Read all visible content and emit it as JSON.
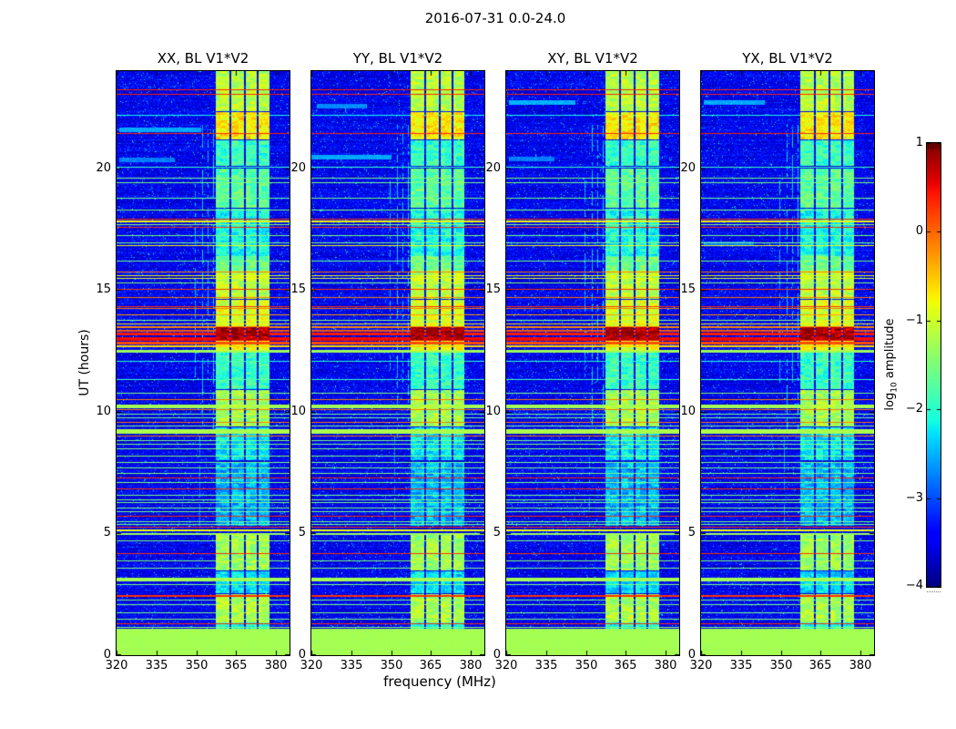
{
  "chart_data": {
    "type": "heatmap",
    "title": "2016-07-31 0.0-24.0",
    "xlabel": "frequency (MHz)",
    "ylabel": "UT (hours)",
    "x_range": [
      320,
      385.1
    ],
    "y_range": [
      0,
      24
    ],
    "x_tick_labels": [
      "320",
      "335",
      "350",
      "365",
      "380"
    ],
    "x_tick_values": [
      320,
      335,
      350,
      365,
      380
    ],
    "y_tick_labels": [
      "0",
      "5",
      "10",
      "15",
      "20"
    ],
    "y_tick_values": [
      0,
      5,
      10,
      15,
      20
    ],
    "panels": [
      {
        "label": "XX, BL V1*V2"
      },
      {
        "label": "YY, BL V1*V2"
      },
      {
        "label": "XY, BL V1*V2"
      },
      {
        "label": "YX, BL V1*V2"
      }
    ],
    "colorbar": {
      "label_log": "log",
      "label_sub": "10",
      "label_rest": " amplitude",
      "tick_labels": [
        "1",
        "0",
        "−1",
        "−2",
        "−3",
        "−4"
      ],
      "tick_values": [
        1,
        0,
        -1,
        -2,
        -3,
        -4
      ],
      "vmin": -4,
      "vmax": 1,
      "colormap": "jet"
    },
    "features": {
      "background": {
        "level": -3.85,
        "noise": 0.75,
        "speckle_level": -2.6,
        "speckle_prob": 0.02
      },
      "bottom_block": {
        "t": [
          0,
          1.08
        ],
        "level": -1.25
      },
      "band": {
        "f": [
          357.3,
          377.6
        ],
        "gap_freqs": [
          362.9,
          368.3,
          373.0
        ],
        "gap_halfwidth": 0.4,
        "intervals": [
          [
            22.35,
            24.0,
            -1.15
          ],
          [
            21.2,
            22.3,
            -0.7
          ],
          [
            20.1,
            21.15,
            -1.9
          ],
          [
            18.4,
            20.0,
            -1.7
          ],
          [
            16.4,
            18.35,
            -2.1
          ],
          [
            15.8,
            16.4,
            -1.6
          ],
          [
            14.65,
            15.8,
            -1.1
          ],
          [
            13.5,
            14.6,
            -0.95
          ],
          [
            12.95,
            13.48,
            0.85
          ],
          [
            12.5,
            12.95,
            -0.9
          ],
          [
            10.95,
            12.45,
            -1.9
          ],
          [
            9.4,
            10.9,
            -1.25
          ],
          [
            8.0,
            9.35,
            -2.25
          ],
          [
            5.3,
            7.95,
            -2.5
          ],
          [
            3.5,
            5.0,
            -1.3
          ],
          [
            2.55,
            3.45,
            -2.3
          ],
          [
            1.35,
            2.5,
            -1.2
          ],
          [
            1.08,
            1.35,
            -2.0
          ]
        ]
      },
      "horizontal_lines": [
        [
          23.25,
          0.35,
          1
        ],
        [
          23.05,
          0.35,
          1
        ],
        [
          22.2,
          -2.1,
          1
        ],
        [
          21.45,
          0.35,
          1
        ],
        [
          20.05,
          -1.9,
          1
        ],
        [
          19.62,
          -1.5,
          1
        ],
        [
          19.42,
          -1.5,
          1
        ],
        [
          18.78,
          -1.55,
          1
        ],
        [
          18.32,
          -1.5,
          1
        ],
        [
          17.95,
          0.3,
          1
        ],
        [
          17.85,
          -0.75,
          2
        ],
        [
          17.7,
          -1.3,
          1
        ],
        [
          17.6,
          0.3,
          1
        ],
        [
          17.25,
          -1.5,
          1
        ],
        [
          16.95,
          -1.5,
          1
        ],
        [
          16.85,
          -0.8,
          1
        ],
        [
          16.2,
          -1.6,
          1
        ],
        [
          15.78,
          -0.1,
          1
        ],
        [
          15.6,
          -0.8,
          1
        ],
        [
          15.5,
          -0.85,
          1
        ],
        [
          15.32,
          -1.5,
          1
        ],
        [
          15.05,
          0.3,
          1
        ],
        [
          14.7,
          -0.1,
          1
        ],
        [
          14.35,
          0.3,
          1
        ],
        [
          14.25,
          -0.1,
          1
        ],
        [
          14.0,
          -0.3,
          1
        ],
        [
          13.78,
          -1.4,
          1
        ],
        [
          13.62,
          -0.7,
          1
        ],
        [
          13.5,
          -0.15,
          2
        ],
        [
          13.38,
          0.1,
          2
        ],
        [
          13.27,
          0.4,
          3
        ],
        [
          13.08,
          0.5,
          4
        ],
        [
          12.88,
          0.15,
          3
        ],
        [
          12.72,
          -0.6,
          2
        ],
        [
          12.55,
          -1.3,
          3
        ],
        [
          12.1,
          -2.0,
          1
        ],
        [
          11.35,
          -1.9,
          1
        ],
        [
          10.78,
          -1.5,
          1
        ],
        [
          10.52,
          -0.1,
          1
        ],
        [
          10.3,
          -1.25,
          4
        ],
        [
          10.12,
          -0.1,
          1
        ],
        [
          9.92,
          -1.5,
          1
        ],
        [
          9.78,
          -1.5,
          1
        ],
        [
          9.58,
          -0.1,
          1
        ],
        [
          9.45,
          -1.45,
          1
        ],
        [
          9.3,
          -1.2,
          5
        ],
        [
          9.02,
          -0.05,
          1
        ],
        [
          8.85,
          -1.5,
          1
        ],
        [
          8.68,
          -1.5,
          1
        ],
        [
          8.5,
          -1.5,
          1
        ],
        [
          8.2,
          -1.5,
          1
        ],
        [
          7.92,
          -1.5,
          1
        ],
        [
          7.72,
          -1.5,
          1
        ],
        [
          7.5,
          -1.5,
          1
        ],
        [
          7.3,
          0.3,
          1
        ],
        [
          7.12,
          -1.5,
          1
        ],
        [
          6.85,
          0.3,
          1
        ],
        [
          6.6,
          -1.5,
          1
        ],
        [
          6.42,
          -1.5,
          1
        ],
        [
          6.28,
          -1.5,
          1
        ],
        [
          6.08,
          -1.5,
          1
        ],
        [
          5.92,
          -1.5,
          1
        ],
        [
          5.72,
          0.3,
          1
        ],
        [
          5.52,
          -1.5,
          1
        ],
        [
          5.38,
          -1.5,
          1
        ],
        [
          5.28,
          0.3,
          1
        ],
        [
          5.15,
          -0.8,
          2
        ],
        [
          5.02,
          -1.3,
          2
        ],
        [
          4.7,
          -1.5,
          1
        ],
        [
          4.2,
          0.3,
          1
        ],
        [
          3.88,
          -1.5,
          1
        ],
        [
          3.6,
          -1.5,
          1
        ],
        [
          3.2,
          -1.25,
          4
        ],
        [
          2.92,
          -1.5,
          1
        ],
        [
          2.48,
          0.3,
          2
        ],
        [
          2.28,
          -1.5,
          1
        ],
        [
          2.08,
          -1.5,
          1
        ],
        [
          1.75,
          -1.5,
          1
        ],
        [
          1.5,
          -1.5,
          1
        ],
        [
          1.32,
          0.3,
          1
        ],
        [
          1.15,
          -1.4,
          1
        ]
      ],
      "vertical_lines": [
        [
          349.8,
          11.2,
          19.5,
          -2.5
        ],
        [
          352.5,
          8.9,
          21.8,
          -2.4
        ],
        [
          354.3,
          11.2,
          21.8,
          -2.45
        ],
        [
          356.4,
          9.0,
          21.8,
          -2.35
        ],
        [
          351.2,
          5.2,
          9.0,
          -2.7
        ]
      ],
      "smears_per_panel": [
        [
          [
            21.6,
            321,
            352,
            -2.55
          ],
          [
            20.35,
            321,
            342,
            -2.75
          ]
        ],
        [
          [
            20.45,
            320,
            350,
            -2.55
          ],
          [
            22.55,
            322,
            341,
            -2.7
          ]
        ],
        [
          [
            22.7,
            321,
            346,
            -2.5
          ],
          [
            20.4,
            321,
            338,
            -2.75
          ]
        ],
        [
          [
            22.7,
            321,
            344,
            -2.55
          ],
          [
            16.9,
            321,
            340,
            -2.8
          ]
        ]
      ],
      "seeds": [
        1,
        2,
        3,
        4
      ]
    }
  }
}
